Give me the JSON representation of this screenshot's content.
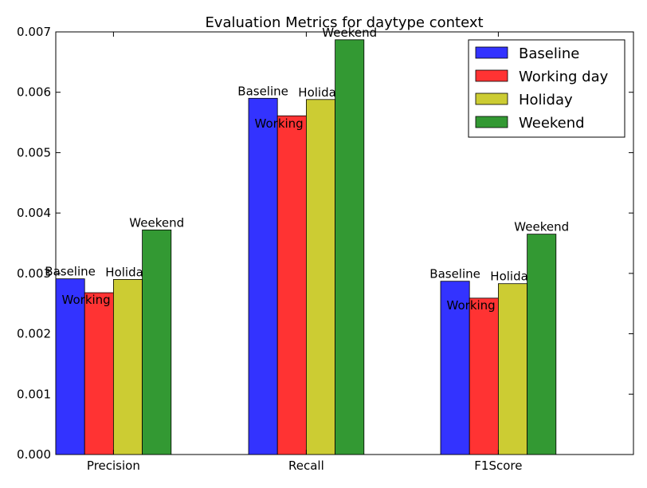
{
  "chart_data": {
    "type": "bar",
    "title": "Evaluation Metrics for daytype context",
    "xlabel": "",
    "ylabel": "",
    "categories": [
      "Precision",
      "Recall",
      "F1Score"
    ],
    "series": [
      {
        "name": "Baseline",
        "color": "#3333ff",
        "values": [
          0.00291,
          0.0059,
          0.00287
        ]
      },
      {
        "name": "Working day",
        "color": "#ff3333",
        "values": [
          0.00268,
          0.00561,
          0.00259
        ]
      },
      {
        "name": "Holiday",
        "color": "#cccc33",
        "values": [
          0.0029,
          0.00588,
          0.00283
        ]
      },
      {
        "name": "Weekend",
        "color": "#339933",
        "values": [
          0.00372,
          0.00687,
          0.00365
        ]
      }
    ],
    "ylim": [
      0,
      0.007
    ],
    "yticks": [
      "0.000",
      "0.001",
      "0.002",
      "0.003",
      "0.004",
      "0.005",
      "0.006",
      "0.007"
    ],
    "grid": false,
    "legend_position": "top-right"
  }
}
